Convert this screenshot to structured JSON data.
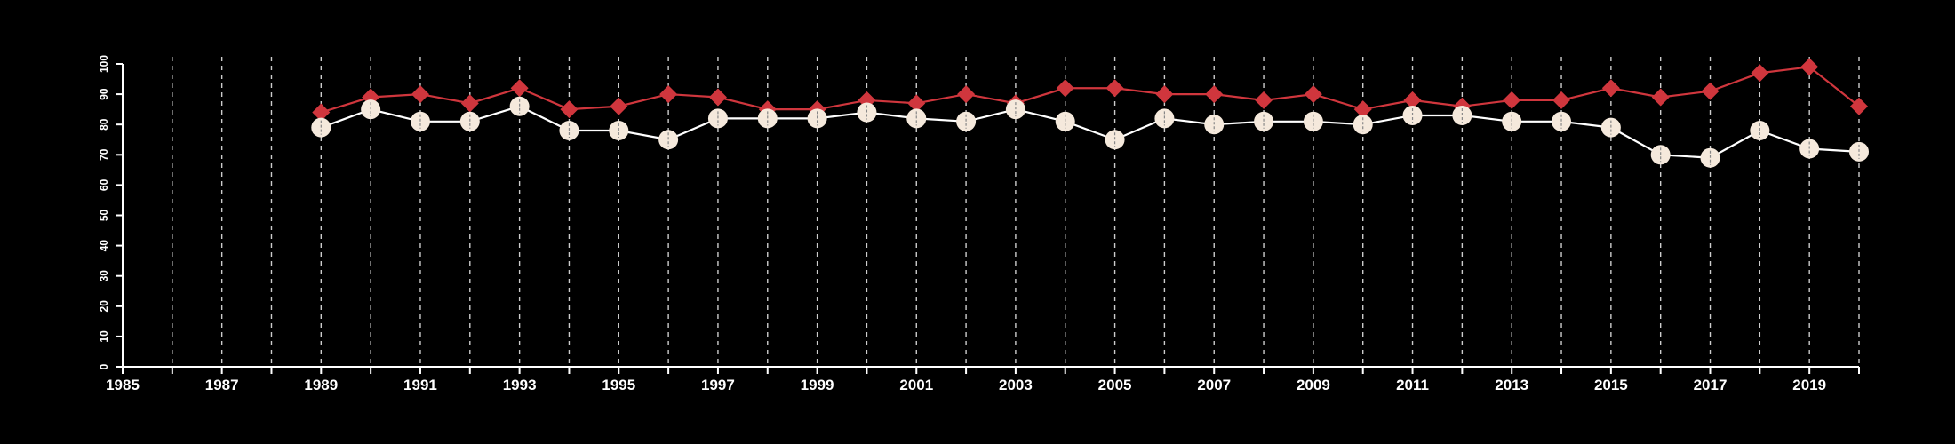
{
  "colors": {
    "background": "#000000",
    "axis": "#ffffff",
    "gridline": "#cccccc",
    "series_red": "#d0363d",
    "series_cream": "#f5e9dc",
    "series_cream_line": "#ffffff"
  },
  "chart_data": {
    "type": "line",
    "title": "",
    "xlabel": "",
    "ylabel": "",
    "xlim": [
      1985,
      2020
    ],
    "ylim": [
      0,
      100
    ],
    "x_ticks": [
      1985,
      1987,
      1989,
      1991,
      1993,
      1995,
      1997,
      1999,
      2001,
      2003,
      2005,
      2007,
      2009,
      2011,
      2013,
      2015,
      2017,
      2019
    ],
    "y_ticks": [
      0,
      10,
      20,
      30,
      40,
      50,
      60,
      70,
      80,
      90,
      100
    ],
    "grid": "vertical dashed lines at every year",
    "legend": "none",
    "x": [
      1989,
      1990,
      1991,
      1992,
      1993,
      1994,
      1995,
      1996,
      1997,
      1998,
      1999,
      2000,
      2001,
      2002,
      2003,
      2004,
      2005,
      2006,
      2007,
      2008,
      2009,
      2010,
      2011,
      2012,
      2013,
      2014,
      2015,
      2016,
      2017,
      2018,
      2019,
      2020
    ],
    "series": [
      {
        "marker": "diamond",
        "color": "#d0363d",
        "values": [
          84,
          89,
          90,
          87,
          92,
          85,
          86,
          90,
          89,
          85,
          85,
          88,
          87,
          90,
          87,
          92,
          92,
          90,
          90,
          88,
          90,
          85,
          88,
          86,
          88,
          88,
          92,
          89,
          91,
          97,
          99,
          86
        ]
      },
      {
        "marker": "circle",
        "color": "#f5e9dc",
        "values": [
          79,
          85,
          81,
          81,
          86,
          78,
          78,
          75,
          82,
          82,
          82,
          84,
          82,
          81,
          85,
          81,
          75,
          82,
          80,
          81,
          81,
          80,
          83,
          83,
          81,
          81,
          79,
          70,
          69,
          78,
          72,
          71
        ]
      }
    ]
  }
}
